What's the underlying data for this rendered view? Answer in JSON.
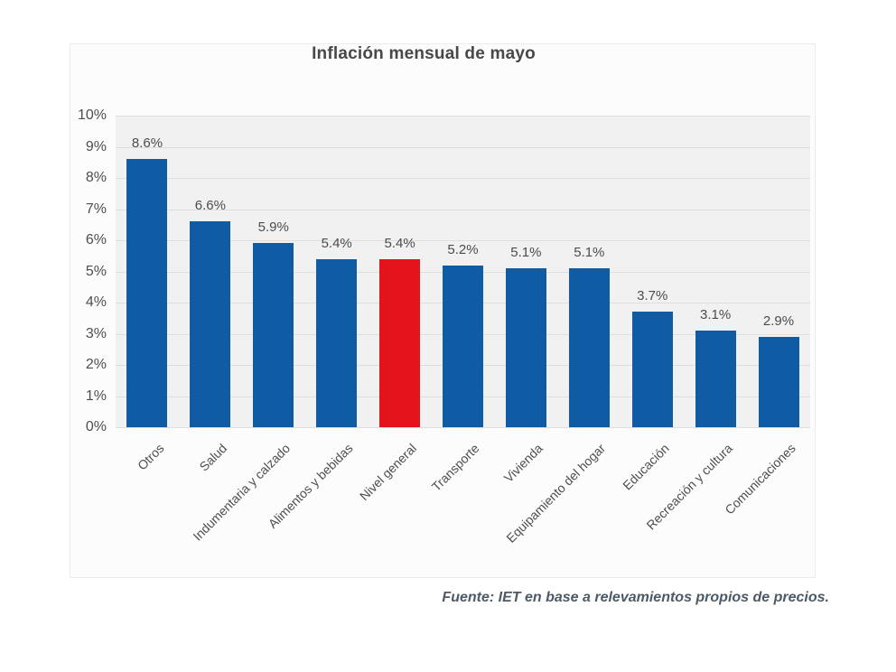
{
  "chart": {
    "title": "Inflación mensual de mayo"
  },
  "chart_data": {
    "type": "bar",
    "title": "Inflación mensual de mayo",
    "categories": [
      "Otros",
      "Salud",
      "Indumentaria y calzado",
      "Alimentos y bebidas",
      "Nivel general",
      "Transporte",
      "Vivienda",
      "Equipamiento del hogar",
      "Educación",
      "Recreación y cultura",
      "Comunicaciones"
    ],
    "values": [
      8.6,
      6.6,
      5.9,
      5.4,
      5.4,
      5.2,
      5.1,
      5.1,
      3.7,
      3.1,
      2.9
    ],
    "data_labels": [
      "8.6%",
      "6.6%",
      "5.9%",
      "5.4%",
      "5.4%",
      "5.2%",
      "5.1%",
      "5.1%",
      "3.7%",
      "3.1%",
      "2.9%"
    ],
    "highlight_category": "Nivel general",
    "highlight_index": 4,
    "colors": {
      "bar": "#0F5CA5",
      "highlight": "#E3141B",
      "plot_background": "#f1f1f1",
      "gridline": "#dedede"
    },
    "ylim": [
      0,
      10
    ],
    "y_ticks": [
      "10%",
      "9%",
      "8%",
      "7%",
      "6%",
      "5%",
      "4%",
      "3%",
      "2%",
      "1%",
      "0%"
    ],
    "grid": true,
    "legend": false,
    "xlabel": "",
    "ylabel": ""
  },
  "footer": {
    "source": "Fuente: IET en base a relevamientos propios de precios."
  }
}
